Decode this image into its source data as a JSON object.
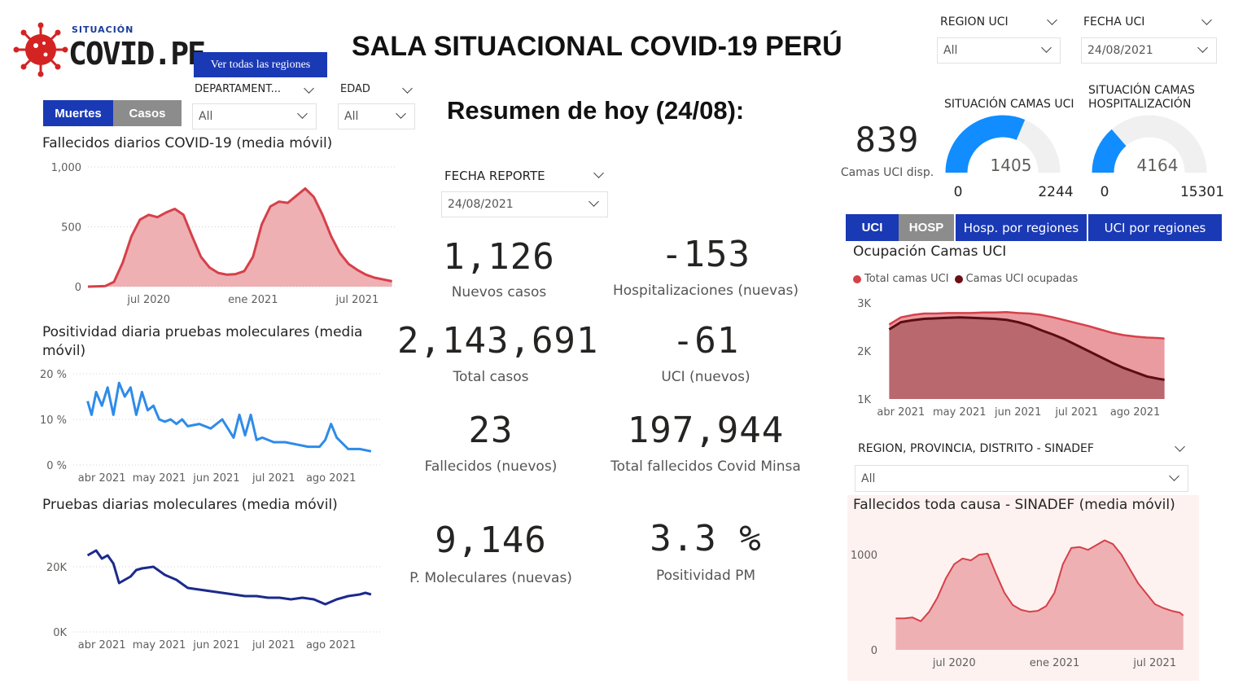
{
  "logo": {
    "small": "SITUACIÓN",
    "big": "COVID.PE",
    "icon": "virus-icon"
  },
  "header": {
    "title": "SALA SITUACIONAL COVID-19 PERÚ",
    "regions_button": "Ver todas las regiones"
  },
  "filters": {
    "departamento": {
      "label": "DEPARTAMENT...",
      "value": "All"
    },
    "edad": {
      "label": "EDAD",
      "value": "All"
    },
    "region_uci": {
      "label": "REGION UCI",
      "value": "All"
    },
    "fecha_uci": {
      "label": "FECHA UCI",
      "value": "24/08/2021"
    },
    "fecha_reporte": {
      "label": "FECHA REPORTE",
      "value": "24/08/2021"
    },
    "sinadef_region": {
      "label": "REGION, PROVINCIA, DISTRITO - SINADEF",
      "value": "All"
    }
  },
  "toggle_left": {
    "active": "Muertes",
    "inactive": "Casos"
  },
  "summary": {
    "title": "Resumen de hoy (24/08):",
    "kpis": [
      {
        "value": "1,126",
        "label": "Nuevos casos"
      },
      {
        "value": "-153",
        "label": "Hospitalizaciones (nuevas)"
      },
      {
        "value": "2,143,691",
        "label": "Total casos"
      },
      {
        "value": "-61",
        "label": "UCI (nuevos)"
      },
      {
        "value": "23",
        "label": "Fallecidos  (nuevos)"
      },
      {
        "value": "197,944",
        "label": "Total fallecidos Covid Minsa"
      },
      {
        "value": "9,146",
        "label": "P. Moleculares (nuevas)"
      },
      {
        "value": "3.3 %",
        "label": "Positividad PM"
      }
    ]
  },
  "uci": {
    "available_value": "839",
    "available_label": "Camas UCI disp.",
    "gauge_uci": {
      "title": "SITUACIÓN CAMAS UCI",
      "value": 1405,
      "min": 0,
      "max": 2244,
      "value_label": "1405",
      "min_label": "0",
      "max_label": "2244"
    },
    "gauge_hosp": {
      "title": "SITUACIÓN CAMAS HOSPITALIZACIÓN",
      "value": 4164,
      "min": 0,
      "max": 15301,
      "value_label": "4164",
      "min_label": "0",
      "max_label": "15301"
    }
  },
  "tabs_right": {
    "uci": "UCI",
    "hosp": "HOSP",
    "hosp_regiones": "Hosp. por regiones",
    "uci_regiones": "UCI por regiones"
  },
  "colors": {
    "accent_blue": "#1a39b5",
    "red_line": "#d6404a",
    "red_fill": "#eeb0b3",
    "dark_red": "#6a1016",
    "light_blue": "#2e8bea",
    "navy": "#1b2a8c",
    "gauge_blue": "#118dff"
  },
  "chart_data": [
    {
      "id": "fallecidos",
      "type": "area",
      "title": "Fallecidos diarios COVID-19 (media móvil)",
      "x_ticks": [
        "jul 2020",
        "ene 2021",
        "jul 2021"
      ],
      "x_tick_pos": [
        3.5,
        9.5,
        15.5
      ],
      "y_ticks": [
        "1,000",
        "500",
        "0"
      ],
      "y_tick_values": [
        1000,
        500,
        0
      ],
      "ylim": [
        0,
        1000
      ],
      "xlim": [
        0,
        17.8
      ],
      "x": [
        0,
        1,
        1.5,
        2,
        2.5,
        3,
        3.5,
        4,
        4.5,
        5,
        5.5,
        6,
        6.5,
        7,
        7.5,
        8,
        8.5,
        9,
        9.5,
        10,
        10.5,
        11,
        11.5,
        12,
        12.5,
        13,
        13.5,
        14,
        14.5,
        15,
        15.5,
        16,
        16.5,
        17,
        17.5
      ],
      "values": [
        0,
        5,
        40,
        200,
        420,
        560,
        600,
        580,
        620,
        650,
        600,
        420,
        250,
        160,
        115,
        100,
        105,
        130,
        250,
        520,
        670,
        710,
        700,
        760,
        820,
        750,
        600,
        420,
        280,
        190,
        140,
        100,
        75,
        60,
        45
      ]
    },
    {
      "id": "positividad",
      "type": "line",
      "title": "Positividad diaria pruebas moleculares (media móvil)",
      "x_ticks": [
        "abr 2021",
        "may 2021",
        "jun 2021",
        "jul 2021",
        "ago 2021"
      ],
      "x_tick_pos": [
        0.5,
        1.5,
        2.5,
        3.5,
        4.5
      ],
      "y_ticks": [
        "20 %",
        "10 %",
        "0 %"
      ],
      "y_tick_values": [
        20,
        10,
        0
      ],
      "ylim": [
        0,
        20
      ],
      "xlim": [
        0,
        5.4
      ],
      "x": [
        0.25,
        0.32,
        0.4,
        0.5,
        0.6,
        0.7,
        0.8,
        0.9,
        1.0,
        1.1,
        1.2,
        1.3,
        1.4,
        1.5,
        1.6,
        1.7,
        1.8,
        1.9,
        2.0,
        2.2,
        2.4,
        2.6,
        2.8,
        2.9,
        3.0,
        3.1,
        3.2,
        3.3,
        3.5,
        3.7,
        3.9,
        4.1,
        4.3,
        4.4,
        4.5,
        4.6,
        4.8,
        5.0,
        5.2
      ],
      "values": [
        14,
        11,
        16,
        13,
        17,
        11,
        18,
        15,
        17,
        11,
        16,
        12,
        13,
        10,
        9.5,
        10,
        9,
        10,
        8.5,
        9,
        8,
        10,
        6,
        11,
        6.5,
        11,
        5.5,
        6,
        5,
        5,
        4.5,
        4,
        4,
        5.5,
        9,
        6,
        3.5,
        3.5,
        3
      ]
    },
    {
      "id": "pruebas",
      "type": "line",
      "title": "Pruebas diarias moleculares (media móvil)",
      "x_ticks": [
        "abr 2021",
        "may 2021",
        "jun 2021",
        "jul 2021",
        "ago 2021"
      ],
      "x_tick_pos": [
        0.5,
        1.5,
        2.5,
        3.5,
        4.5
      ],
      "y_ticks": [
        "20K",
        "0K"
      ],
      "y_tick_values": [
        20000,
        0
      ],
      "ylim": [
        0,
        30000
      ],
      "xlim": [
        0,
        5.4
      ],
      "x": [
        0.25,
        0.4,
        0.5,
        0.6,
        0.7,
        0.8,
        0.9,
        1.0,
        1.1,
        1.2,
        1.4,
        1.6,
        1.8,
        2.0,
        2.2,
        2.4,
        2.6,
        2.8,
        3.0,
        3.2,
        3.4,
        3.6,
        3.8,
        4.0,
        4.2,
        4.4,
        4.6,
        4.8,
        5.0,
        5.1,
        5.2
      ],
      "values": [
        23500,
        25000,
        22500,
        23500,
        21000,
        15000,
        16000,
        17000,
        19000,
        19500,
        20000,
        17500,
        16000,
        13500,
        13000,
        12500,
        12000,
        11500,
        11000,
        11000,
        10500,
        10500,
        10000,
        10500,
        10000,
        8500,
        10000,
        11000,
        11500,
        12000,
        11500
      ]
    },
    {
      "id": "ocupacion_uci",
      "type": "area",
      "title": "Ocupación Camas UCI",
      "legend": [
        "Total camas UCI",
        "Camas UCI ocupadas"
      ],
      "x_ticks": [
        "abr 2021",
        "may 2021",
        "jun 2021",
        "jul 2021",
        "ago 2021"
      ],
      "x_tick_pos": [
        0.2,
        1.2,
        2.2,
        3.2,
        4.2
      ],
      "y_ticks": [
        "3K",
        "2K",
        "1K"
      ],
      "y_tick_values": [
        3000,
        2000,
        1000
      ],
      "ylim": [
        1000,
        3000
      ],
      "xlim": [
        -0.2,
        4.9
      ],
      "x": [
        0,
        0.2,
        0.4,
        0.6,
        0.8,
        1.0,
        1.2,
        1.4,
        1.6,
        1.8,
        2.0,
        2.2,
        2.4,
        2.6,
        2.8,
        3.0,
        3.2,
        3.4,
        3.6,
        3.8,
        4.0,
        4.2,
        4.4,
        4.6,
        4.7
      ],
      "series": [
        {
          "name": "Total camas UCI",
          "values": [
            2550,
            2700,
            2750,
            2780,
            2780,
            2790,
            2790,
            2790,
            2800,
            2800,
            2810,
            2790,
            2780,
            2750,
            2700,
            2640,
            2580,
            2520,
            2450,
            2380,
            2330,
            2300,
            2280,
            2270,
            2260
          ]
        },
        {
          "name": "Camas UCI ocupadas",
          "values": [
            2450,
            2600,
            2640,
            2670,
            2680,
            2690,
            2700,
            2690,
            2680,
            2670,
            2650,
            2600,
            2530,
            2430,
            2340,
            2240,
            2120,
            2000,
            1880,
            1760,
            1650,
            1560,
            1470,
            1420,
            1400
          ]
        }
      ]
    },
    {
      "id": "sinadef",
      "type": "area",
      "title": "Fallecidos toda causa - SINADEF (media móvil)",
      "x_ticks": [
        "jul 2020",
        "ene 2021",
        "jul 2021"
      ],
      "x_tick_pos": [
        3.5,
        9.5,
        15.5
      ],
      "y_ticks": [
        "1000",
        "0"
      ],
      "y_tick_values": [
        1000,
        0
      ],
      "ylim": [
        0,
        1300
      ],
      "xlim": [
        -0.7,
        17.8
      ],
      "x": [
        0,
        0.5,
        1,
        1.5,
        2,
        2.5,
        3,
        3.5,
        4,
        4.5,
        5,
        5.5,
        6,
        6.5,
        7,
        7.5,
        8,
        8.5,
        9,
        9.5,
        10,
        10.5,
        11,
        11.5,
        12,
        12.5,
        13,
        13.5,
        14,
        14.5,
        15,
        15.5,
        16,
        16.5,
        17,
        17.2
      ],
      "values": [
        330,
        330,
        340,
        300,
        400,
        550,
        750,
        900,
        960,
        940,
        1000,
        1010,
        800,
        600,
        470,
        420,
        400,
        410,
        460,
        600,
        900,
        1070,
        1080,
        1050,
        1100,
        1150,
        1110,
        1000,
        850,
        700,
        590,
        480,
        440,
        410,
        390,
        360
      ]
    }
  ]
}
